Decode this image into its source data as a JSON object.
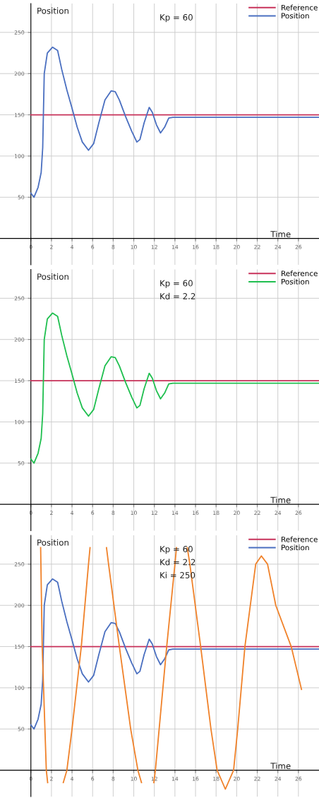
{
  "chart_data": [
    {
      "type": "line",
      "xlabel": "Time",
      "ylabel": "Position",
      "annotations": [
        "Kp = 60"
      ],
      "xlim": [
        -3,
        28
      ],
      "ylim": [
        -32,
        285
      ],
      "xticks": [
        0,
        2,
        4,
        6,
        8,
        10,
        12,
        14,
        16,
        18,
        20,
        22,
        24,
        26
      ],
      "yticks": [
        50,
        100,
        150,
        200,
        250
      ],
      "grid": true,
      "legend": "top right",
      "line_style": "solid",
      "series": [
        {
          "name": "Reference",
          "color": "#c8325a",
          "x": [
            0,
            28
          ],
          "values": [
            150,
            150
          ]
        },
        {
          "name": "Position",
          "color": "#4a6fc0",
          "x": [
            0,
            0.3,
            0.7,
            1.0,
            1.15,
            1.3,
            1.6,
            2.1,
            2.6,
            3.0,
            3.5,
            4.0,
            4.5,
            5.0,
            5.6,
            6.1,
            6.6,
            7.2,
            7.8,
            8.2,
            8.6,
            9.2,
            9.8,
            10.3,
            10.6,
            11.0,
            11.5,
            11.8,
            12.2,
            12.6,
            13.0,
            13.4,
            13.8,
            28
          ],
          "values": [
            55,
            50,
            62,
            80,
            110,
            200,
            225,
            232,
            228,
            205,
            180,
            158,
            135,
            117,
            107,
            115,
            140,
            168,
            179,
            178,
            168,
            148,
            130,
            117,
            120,
            140,
            159,
            153,
            138,
            128,
            135,
            146,
            147,
            147
          ]
        }
      ]
    },
    {
      "type": "line",
      "xlabel": "Time",
      "ylabel": "Position",
      "annotations": [
        "Kp = 60",
        "Kd = 2.2"
      ],
      "xlim": [
        -3,
        28
      ],
      "ylim": [
        -32,
        285
      ],
      "xticks": [
        0,
        2,
        4,
        6,
        8,
        10,
        12,
        14,
        16,
        18,
        20,
        22,
        24,
        26
      ],
      "yticks": [
        50,
        100,
        150,
        200,
        250
      ],
      "grid": true,
      "legend": "top right",
      "line_style": "solid",
      "series": [
        {
          "name": "Reference",
          "color": "#c8325a",
          "x": [
            0,
            28
          ],
          "values": [
            150,
            150
          ]
        },
        {
          "name": "Position",
          "color": "#1fbf4f",
          "x": [
            0,
            0.3,
            0.7,
            1.0,
            1.15,
            1.3,
            1.6,
            2.1,
            2.6,
            3.0,
            3.5,
            4.0,
            4.5,
            5.0,
            5.6,
            6.1,
            6.6,
            7.2,
            7.8,
            8.2,
            8.6,
            9.2,
            9.8,
            10.3,
            10.6,
            11.0,
            11.5,
            11.8,
            12.2,
            12.6,
            13.0,
            13.4,
            13.8,
            28
          ],
          "values": [
            55,
            50,
            62,
            80,
            110,
            200,
            225,
            232,
            228,
            205,
            180,
            158,
            135,
            117,
            107,
            115,
            140,
            168,
            179,
            178,
            168,
            148,
            130,
            117,
            120,
            140,
            159,
            153,
            138,
            128,
            135,
            146,
            147,
            147
          ]
        }
      ]
    },
    {
      "type": "line",
      "xlabel": "Time",
      "ylabel": "Position",
      "annotations": [
        "Kp = 60",
        "Kd = 2.2",
        "Ki = 250"
      ],
      "xlim": [
        -3,
        28
      ],
      "ylim": [
        -32,
        285
      ],
      "xticks": [
        0,
        2,
        4,
        6,
        8,
        10,
        12,
        14,
        16,
        18,
        20,
        22,
        24,
        26
      ],
      "yticks": [
        50,
        100,
        150,
        200,
        250
      ],
      "grid": true,
      "legend": "top right",
      "line_style": "solid",
      "series": [
        {
          "name": "Reference",
          "color": "#c8325a",
          "x": [
            0,
            28
          ],
          "values": [
            150,
            150
          ]
        },
        {
          "name": "Position",
          "color": "#4a6fc0",
          "x": [
            0,
            0.3,
            0.7,
            1.0,
            1.15,
            1.3,
            1.6,
            2.1,
            2.6,
            3.0,
            3.5,
            4.0,
            4.5,
            5.0,
            5.6,
            6.1,
            6.6,
            7.2,
            7.8,
            8.2,
            8.6,
            9.2,
            9.8,
            10.3,
            10.6,
            11.0,
            11.5,
            11.8,
            12.2,
            12.6,
            13.0,
            13.4,
            13.8,
            28
          ],
          "values": [
            55,
            50,
            62,
            80,
            110,
            200,
            225,
            232,
            228,
            205,
            180,
            158,
            135,
            117,
            107,
            115,
            140,
            168,
            179,
            178,
            168,
            148,
            130,
            117,
            120,
            140,
            159,
            153,
            138,
            128,
            135,
            146,
            147,
            147
          ]
        },
        {
          "color": "#f0822a",
          "x": [
            0.95,
            1.1,
            1.5,
            1.63,
            1.8,
            3.15,
            3.5,
            4.0,
            4.9,
            5.6,
            5.75,
            6.5,
            7.35,
            7.55,
            8.6,
            9.7,
            10.4,
            10.75,
            11.3,
            11.95,
            12.1,
            13.2,
            14.0,
            14.15,
            14.6,
            15.2,
            15.45,
            16.5,
            17.5,
            18.1,
            18.9,
            19.7,
            20.1,
            20.8,
            21.85,
            22.4,
            23.0,
            23.8,
            25.3,
            26.3
          ],
          "values": [
            270,
            150,
            0,
            -15,
            null,
            -15,
            0,
            50,
            150,
            250,
            270,
            null,
            270,
            250,
            150,
            50,
            0,
            -15,
            null,
            -15,
            0,
            150,
            250,
            270,
            null,
            270,
            250,
            150,
            50,
            0,
            -23,
            0,
            50,
            150,
            250,
            260,
            250,
            200,
            150,
            98
          ]
        }
      ]
    }
  ]
}
